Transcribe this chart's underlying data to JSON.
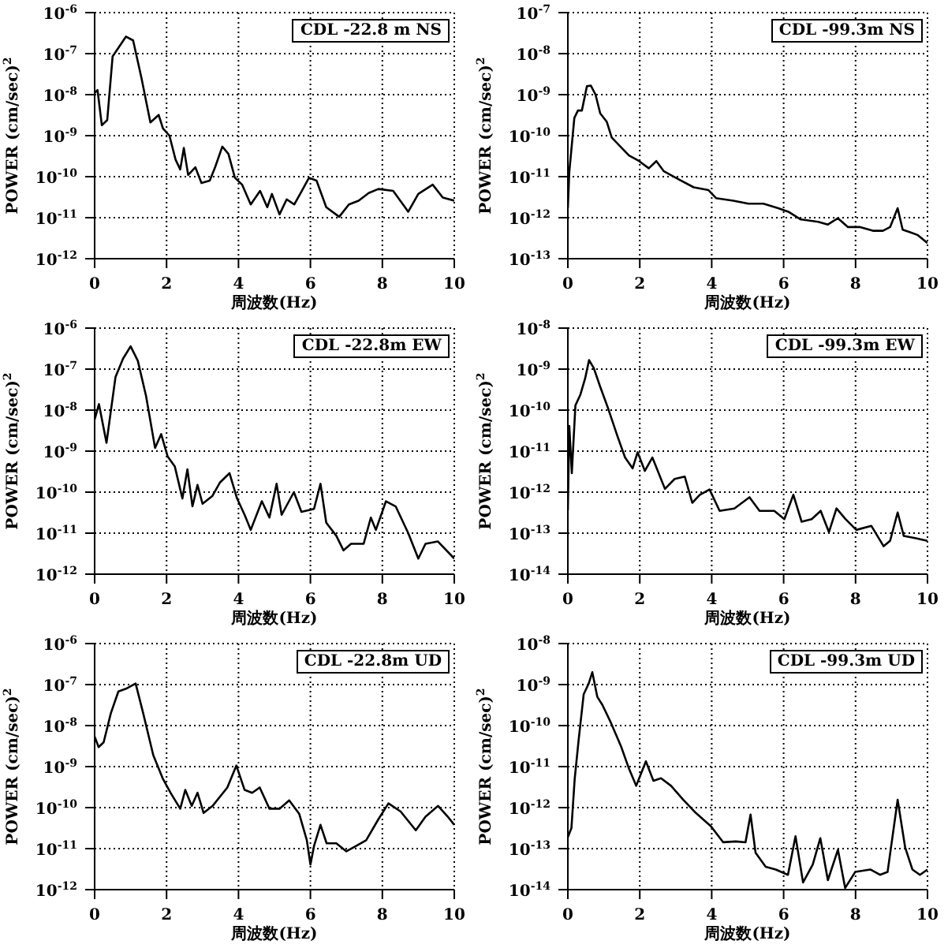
{
  "chart_data": [
    {
      "type": "line",
      "title": "CDL -22.8 m NS",
      "xlabel": "周波数(Hz)",
      "ylabel": "POWER (cm/sec)$^{2}$",
      "log": "y",
      "grid": true,
      "xlim": [
        0,
        10
      ],
      "xticks": [
        0,
        2,
        4,
        6,
        8,
        10
      ],
      "ylim": [
        1e-12,
        1e-06
      ],
      "yticks": [
        {
          "value": 1e-12,
          "label": "10$^{-12}$"
        },
        {
          "value": 1e-11,
          "label": "10$^{-11}$"
        },
        {
          "value": 1e-10,
          "label": "10$^{-10}$"
        },
        {
          "value": 1e-09,
          "label": "10$^{-9}$"
        },
        {
          "value": 1e-08,
          "label": "10$^{-8}$"
        },
        {
          "value": 1e-07,
          "label": "10$^{-7}$"
        },
        {
          "value": 1e-06,
          "label": "10$^{-6}$"
        }
      ],
      "series": [
        {
          "color": "#000000",
          "x": [
            0,
            0.08,
            0.2,
            0.35,
            0.5,
            0.87,
            1.07,
            1.3,
            1.55,
            1.78,
            1.9,
            2.08,
            2.25,
            2.38,
            2.48,
            2.6,
            2.8,
            2.97,
            3.2,
            3.35,
            3.55,
            3.72,
            3.9,
            4.1,
            4.34,
            4.6,
            4.8,
            4.93,
            5.14,
            5.34,
            5.55,
            5.76,
            5.96,
            6.17,
            6.44,
            6.8,
            7.07,
            7.34,
            7.62,
            7.89,
            8.3,
            8.72,
            9.0,
            9.4,
            9.68,
            10
          ],
          "values": [
            1.1e-08,
            1.3e-08,
            1.8e-09,
            2.4e-09,
            8.6e-08,
            2.6e-07,
            2.1e-07,
            2.6e-08,
            2.1e-09,
            3.2e-09,
            1.5e-09,
            1e-09,
            2.6e-10,
            1.5e-10,
            5e-10,
            1.1e-10,
            1.7e-10,
            7e-11,
            8e-11,
            1.7e-10,
            5.4e-10,
            3.6e-10,
            9.4e-11,
            6.4e-11,
            2.1e-11,
            4.5e-11,
            1.8e-11,
            3.8e-11,
            1.2e-11,
            2.8e-11,
            2.1e-11,
            4.5e-11,
            9.4e-11,
            8e-11,
            1.8e-11,
            1.05e-11,
            2.1e-11,
            2.6e-11,
            4e-11,
            5e-11,
            4.5e-11,
            1.4e-11,
            3.8e-11,
            6.4e-11,
            3.1e-11,
            2.6e-11
          ]
        }
      ]
    },
    {
      "type": "line",
      "title": "CDL -99.3m NS",
      "xlabel": "周波数(Hz)",
      "ylabel": "POWER (cm/sec)$^{2}$",
      "log": "y",
      "grid": true,
      "xlim": [
        0,
        10
      ],
      "xticks": [
        0,
        2,
        4,
        6,
        8,
        10
      ],
      "ylim": [
        1e-13,
        1e-07
      ],
      "yticks": [
        {
          "value": 1e-13,
          "label": "10$^{-13}$"
        },
        {
          "value": 1e-12,
          "label": "10$^{-12}$"
        },
        {
          "value": 1e-11,
          "label": "10$^{-11}$"
        },
        {
          "value": 1e-10,
          "label": "10$^{-10}$"
        },
        {
          "value": 1e-09,
          "label": "10$^{-9}$"
        },
        {
          "value": 1e-08,
          "label": "10$^{-8}$"
        },
        {
          "value": 1e-07,
          "label": "10$^{-7}$"
        }
      ],
      "series": [
        {
          "color": "#000000",
          "x": [
            0,
            0.04,
            0.18,
            0.28,
            0.39,
            0.53,
            0.64,
            0.77,
            0.9,
            1.08,
            1.22,
            1.42,
            1.7,
            1.98,
            2.25,
            2.46,
            2.67,
            3.08,
            3.5,
            3.91,
            4.12,
            4.6,
            5.02,
            5.44,
            5.85,
            6.13,
            6.47,
            6.96,
            7.23,
            7.51,
            7.79,
            8.13,
            8.48,
            8.76,
            8.96,
            9.17,
            9.31,
            9.52,
            9.72,
            10
          ],
          "values": [
            1.7e-12,
            1.3e-11,
            2.7e-10,
            4.1e-10,
            4.1e-10,
            1.6e-09,
            1.66e-09,
            1e-09,
            3.5e-10,
            2.2e-10,
            9e-11,
            5.9e-11,
            3.3e-11,
            2.4e-11,
            1.6e-11,
            2.4e-11,
            1.35e-11,
            8.6e-12,
            5.5e-12,
            4.7e-12,
            3e-12,
            2.6e-12,
            2.2e-12,
            2.2e-12,
            1.7e-12,
            1.4e-12,
            9.1e-13,
            7.9e-13,
            6.8e-13,
            9.7e-13,
            5.9e-13,
            5.9e-13,
            4.8e-13,
            4.8e-13,
            5.9e-13,
            1.7e-12,
            5.1e-13,
            4.4e-13,
            3.8e-13,
            2.4e-13
          ]
        }
      ]
    },
    {
      "type": "line",
      "title": "CDL -22.8m EW",
      "xlabel": "周波数(Hz)",
      "ylabel": "POWER (cm/sec)$^{2}$",
      "log": "y",
      "grid": true,
      "xlim": [
        0,
        10
      ],
      "xticks": [
        0,
        2,
        4,
        6,
        8,
        10
      ],
      "ylim": [
        1e-12,
        1e-06
      ],
      "yticks": [
        {
          "value": 1e-12,
          "label": "10$^{-12}$"
        },
        {
          "value": 1e-11,
          "label": "10$^{-11}$"
        },
        {
          "value": 1e-10,
          "label": "10$^{-10}$"
        },
        {
          "value": 1e-09,
          "label": "10$^{-9}$"
        },
        {
          "value": 1e-08,
          "label": "10$^{-8}$"
        },
        {
          "value": 1e-07,
          "label": "10$^{-7}$"
        },
        {
          "value": 1e-06,
          "label": "10$^{-6}$"
        }
      ],
      "series": [
        {
          "color": "#000000",
          "x": [
            0,
            0.12,
            0.33,
            0.58,
            0.79,
            1.0,
            1.2,
            1.43,
            1.68,
            1.85,
            2.03,
            2.23,
            2.44,
            2.58,
            2.72,
            2.86,
            3.0,
            3.27,
            3.48,
            3.75,
            3.96,
            4.17,
            4.34,
            4.65,
            4.86,
            5.06,
            5.2,
            5.54,
            5.75,
            6.1,
            6.28,
            6.44,
            6.72,
            6.92,
            7.13,
            7.48,
            7.68,
            7.82,
            8.1,
            8.37,
            8.72,
            9.0,
            9.2,
            9.54,
            10
          ],
          "values": [
            5.9e-09,
            1.4e-08,
            1.6e-09,
            6.4e-08,
            1.8e-07,
            3.6e-07,
            1.6e-07,
            2.2e-08,
            1.2e-09,
            2.6e-09,
            7.4e-10,
            4.2e-10,
            7e-11,
            3.6e-10,
            4.5e-11,
            1.5e-10,
            5.2e-11,
            8e-11,
            1.7e-10,
            2.9e-10,
            7e-11,
            2.8e-11,
            1.2e-11,
            6e-11,
            2.4e-11,
            1.6e-10,
            2.8e-11,
            1e-10,
            3.3e-11,
            3.9e-11,
            1.6e-10,
            1.8e-11,
            8.6e-12,
            3.8e-12,
            5.5e-12,
            5.5e-12,
            2.4e-11,
            1.2e-11,
            6e-11,
            4.5e-11,
            1e-11,
            2.4e-12,
            5.5e-12,
            6.3e-12,
            2.4e-12
          ]
        }
      ]
    },
    {
      "type": "line",
      "title": "CDL -99.3m EW",
      "xlabel": "周波数(Hz)",
      "ylabel": "POWER (cm/sec)$^{2}$",
      "log": "y",
      "grid": true,
      "xlim": [
        0,
        10
      ],
      "xticks": [
        0,
        2,
        4,
        6,
        8,
        10
      ],
      "ylim": [
        1e-14,
        1e-08
      ],
      "yticks": [
        {
          "value": 1e-14,
          "label": "10$^{-14}$"
        },
        {
          "value": 1e-13,
          "label": "10$^{-13}$"
        },
        {
          "value": 1e-12,
          "label": "10$^{-12}$"
        },
        {
          "value": 1e-11,
          "label": "10$^{-11}$"
        },
        {
          "value": 1e-10,
          "label": "10$^{-10}$"
        },
        {
          "value": 1e-09,
          "label": "10$^{-9}$"
        },
        {
          "value": 1e-08,
          "label": "10$^{-8}$"
        }
      ],
      "series": [
        {
          "color": "#000000",
          "x": [
            0,
            0.04,
            0.11,
            0.21,
            0.35,
            0.48,
            0.59,
            0.72,
            0.9,
            1.11,
            1.38,
            1.59,
            1.8,
            1.94,
            2.14,
            2.35,
            2.7,
            2.97,
            3.25,
            3.46,
            3.67,
            3.94,
            4.22,
            4.63,
            5.05,
            5.33,
            5.74,
            6.02,
            6.27,
            6.5,
            6.78,
            7.03,
            7.26,
            7.47,
            7.72,
            8.02,
            8.44,
            8.78,
            8.96,
            9.17,
            9.34,
            9.68,
            10
          ],
          "values": [
            3.6e-13,
            4.1e-11,
            2.9e-12,
            1.3e-10,
            2.4e-10,
            5.9e-10,
            1.66e-09,
            1.06e-09,
            3.7e-10,
            1.16e-10,
            2.3e-11,
            7e-12,
            3.8e-12,
            9.4e-12,
            3.3e-12,
            7e-12,
            1.2e-12,
            2.1e-12,
            2.4e-12,
            5.5e-13,
            8.6e-13,
            1.16e-12,
            3.5e-13,
            4e-13,
            7.5e-13,
            3.5e-13,
            3.5e-13,
            2.2e-13,
            8.6e-13,
            1.9e-13,
            2.2e-13,
            3.5e-13,
            1.06e-13,
            4e-13,
            2.2e-13,
            1.2e-13,
            1.5e-13,
            4.8e-14,
            6.5e-14,
            3.2e-13,
            8.6e-14,
            7.5e-14,
            6.5e-14
          ]
        }
      ]
    },
    {
      "type": "line",
      "title": "CDL -22.8m UD",
      "xlabel": "周波数(Hz)",
      "ylabel": "POWER (cm/sec)$^{2}$",
      "log": "y",
      "grid": true,
      "xlim": [
        0,
        10
      ],
      "xticks": [
        0,
        2,
        4,
        6,
        8,
        10
      ],
      "ylim": [
        1e-12,
        1e-06
      ],
      "yticks": [
        {
          "value": 1e-12,
          "label": "10$^{-12}$"
        },
        {
          "value": 1e-11,
          "label": "10$^{-11}$"
        },
        {
          "value": 1e-10,
          "label": "10$^{-10}$"
        },
        {
          "value": 1e-09,
          "label": "10$^{-9}$"
        },
        {
          "value": 1e-08,
          "label": "10$^{-8}$"
        },
        {
          "value": 1e-07,
          "label": "10$^{-7}$"
        },
        {
          "value": 1e-06,
          "label": "10$^{-6}$"
        }
      ],
      "series": [
        {
          "color": "#000000",
          "x": [
            0,
            0.11,
            0.25,
            0.45,
            0.66,
            0.87,
            1.14,
            1.35,
            1.63,
            1.9,
            2.11,
            2.38,
            2.52,
            2.7,
            2.86,
            3.03,
            3.28,
            3.69,
            3.94,
            4.17,
            4.38,
            4.59,
            4.86,
            5.14,
            5.41,
            5.69,
            5.9,
            6.0,
            6.1,
            6.28,
            6.45,
            6.72,
            7.0,
            7.27,
            7.55,
            7.89,
            8.17,
            8.51,
            8.93,
            9.2,
            9.55,
            9.82,
            10
          ],
          "values": [
            5.4e-09,
            3e-09,
            3.9e-09,
            2e-08,
            6.8e-08,
            7.9e-08,
            1.06e-07,
            2e-08,
            1.9e-09,
            5e-10,
            2.3e-10,
            9.4e-11,
            2.7e-10,
            1.1e-10,
            2.3e-10,
            7.4e-11,
            1.1e-10,
            3.1e-10,
            1.06e-09,
            2.7e-10,
            2.3e-10,
            3.1e-10,
            9.4e-11,
            9.4e-11,
            1.5e-10,
            7e-11,
            1.6e-11,
            4.1e-12,
            1.16e-11,
            3.8e-11,
            1.35e-11,
            1.35e-11,
            8.6e-12,
            1.16e-11,
            1.6e-11,
            5.2e-11,
            1.27e-10,
            8e-11,
            2.8e-11,
            6e-11,
            1.1e-10,
            6e-11,
            3.8e-11
          ]
        }
      ]
    },
    {
      "type": "line",
      "title": "CDL -99.3m UD",
      "xlabel": "周波数(Hz)",
      "ylabel": "POWER (cm/sec)$^{2}$",
      "log": "y",
      "grid": true,
      "xlim": [
        0,
        10
      ],
      "xticks": [
        0,
        2,
        4,
        6,
        8,
        10
      ],
      "ylim": [
        1e-14,
        1e-08
      ],
      "yticks": [
        {
          "value": 1e-14,
          "label": "10$^{-14}$"
        },
        {
          "value": 1e-13,
          "label": "10$^{-13}$"
        },
        {
          "value": 1e-12,
          "label": "10$^{-12}$"
        },
        {
          "value": 1e-11,
          "label": "10$^{-11}$"
        },
        {
          "value": 1e-10,
          "label": "10$^{-10}$"
        },
        {
          "value": 1e-09,
          "label": "10$^{-9}$"
        },
        {
          "value": 1e-08,
          "label": "10$^{-8}$"
        }
      ],
      "series": [
        {
          "color": "#000000",
          "x": [
            0,
            0.1,
            0.19,
            0.3,
            0.44,
            0.58,
            0.68,
            0.82,
            0.96,
            1.2,
            1.48,
            1.69,
            1.9,
            2.17,
            2.38,
            2.59,
            2.87,
            3.21,
            3.56,
            3.98,
            4.32,
            4.67,
            4.94,
            5.08,
            5.22,
            5.5,
            5.78,
            6.12,
            6.33,
            6.54,
            6.81,
            7.02,
            7.23,
            7.51,
            7.71,
            7.99,
            8.41,
            8.68,
            8.89,
            9.17,
            9.38,
            9.58,
            9.79,
            10
          ],
          "values": [
            1.9e-13,
            3.2e-13,
            5e-12,
            4.5e-11,
            5.8e-10,
            1.06e-09,
            2e-09,
            5e-10,
            3.2e-10,
            1.16e-10,
            3.1e-11,
            9.4e-12,
            3.4e-12,
            1.35e-11,
            4.5e-12,
            5.2e-12,
            3.4e-12,
            1.55e-12,
            7.4e-13,
            3.5e-13,
            1.43e-13,
            1.5e-13,
            1.43e-13,
            6.8e-13,
            7.9e-14,
            3.6e-14,
            3.1e-14,
            2.3e-14,
            2e-13,
            1.5e-14,
            4.1e-14,
            1.8e-13,
            1.7e-14,
            9.4e-14,
            1.1e-14,
            2.7e-14,
            3.1e-14,
            2.3e-14,
            2.7e-14,
            1.55e-12,
            1.06e-13,
            3.1e-14,
            2.3e-14,
            3.1e-14
          ]
        }
      ]
    }
  ]
}
